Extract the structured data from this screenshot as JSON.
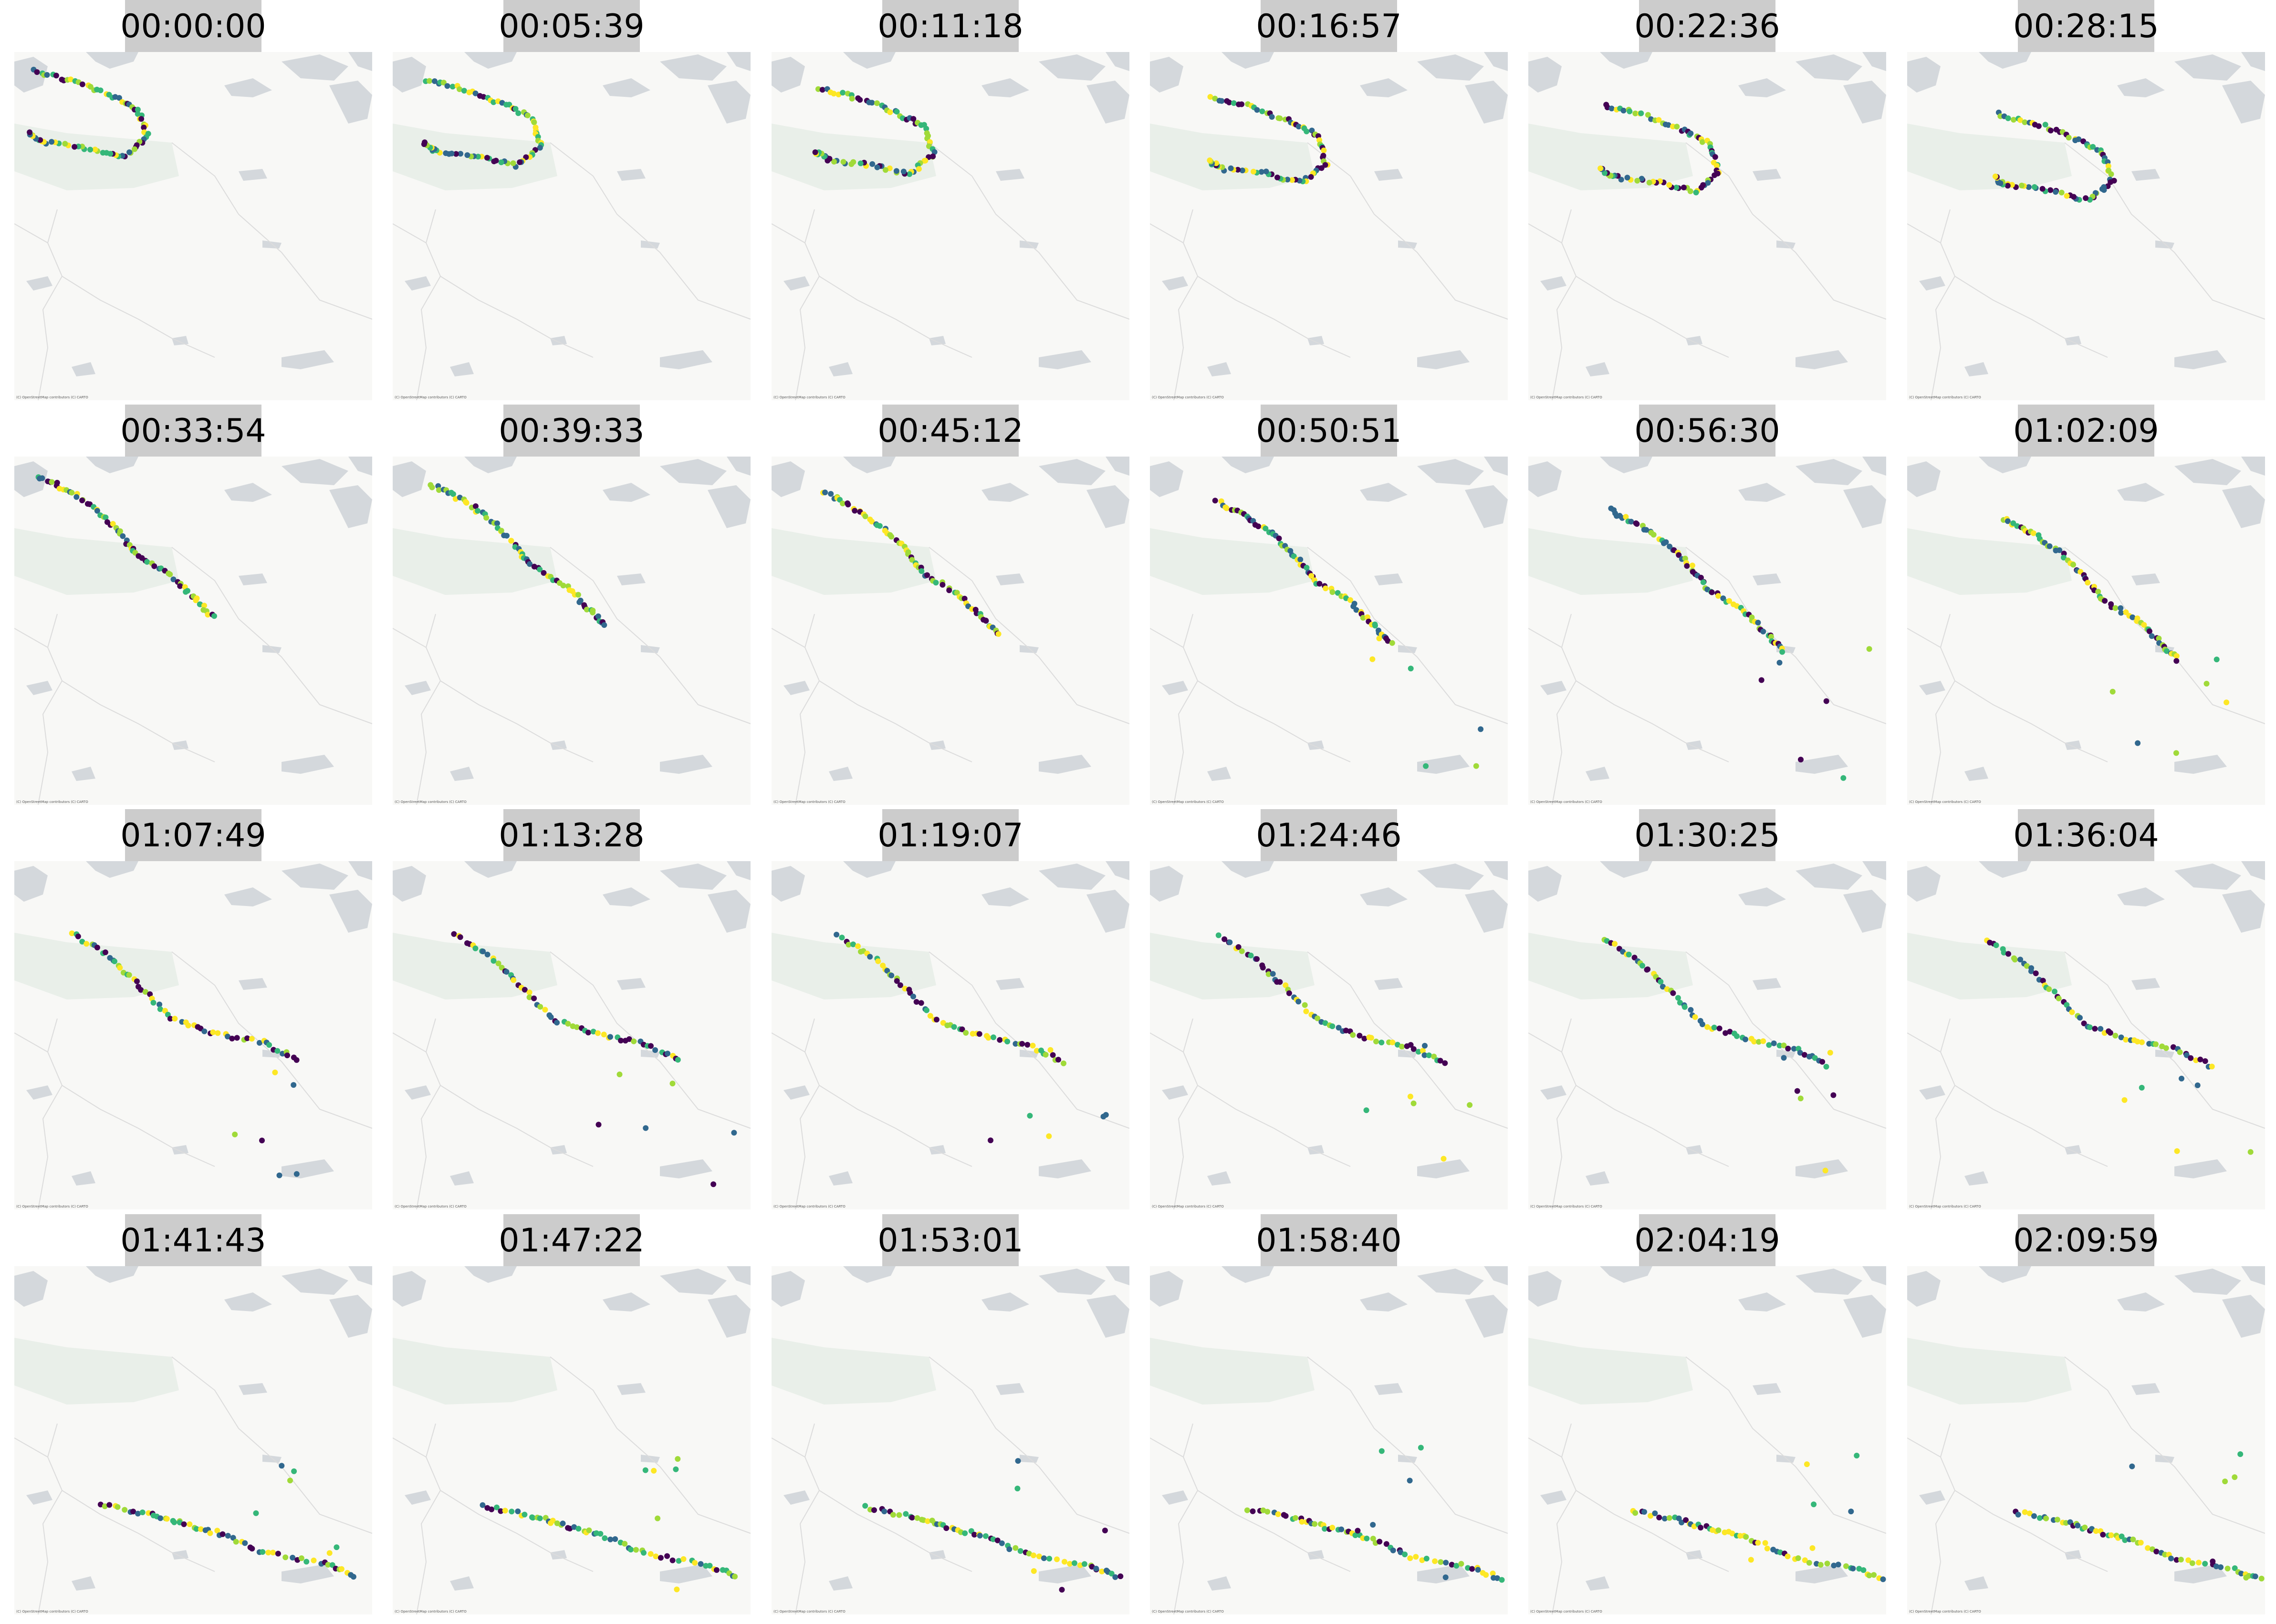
{
  "attribution": "(C) OpenStreetMap contributors (C) CARTO",
  "color_scale": [
    "#440154",
    "#31688e",
    "#35b779",
    "#a0da39",
    "#fde725"
  ],
  "basemap_colors": {
    "background": "#f8f8f6",
    "water": "#d4d8dc",
    "park": "#e9efe9",
    "road": "#dcdcdc"
  },
  "panels": [
    {
      "timestamp": "00:00:00"
    },
    {
      "timestamp": "00:05:39"
    },
    {
      "timestamp": "00:11:18"
    },
    {
      "timestamp": "00:16:57"
    },
    {
      "timestamp": "00:22:36"
    },
    {
      "timestamp": "00:28:15"
    },
    {
      "timestamp": "00:33:54"
    },
    {
      "timestamp": "00:39:33"
    },
    {
      "timestamp": "00:45:12"
    },
    {
      "timestamp": "00:50:51"
    },
    {
      "timestamp": "00:56:30"
    },
    {
      "timestamp": "01:02:09"
    },
    {
      "timestamp": "01:07:49"
    },
    {
      "timestamp": "01:13:28"
    },
    {
      "timestamp": "01:19:07"
    },
    {
      "timestamp": "01:24:46"
    },
    {
      "timestamp": "01:30:25"
    },
    {
      "timestamp": "01:36:04"
    },
    {
      "timestamp": "01:41:43"
    },
    {
      "timestamp": "01:47:22"
    },
    {
      "timestamp": "01:53:01"
    },
    {
      "timestamp": "01:58:40"
    },
    {
      "timestamp": "02:04:19"
    },
    {
      "timestamp": "02:09:59"
    }
  ]
}
